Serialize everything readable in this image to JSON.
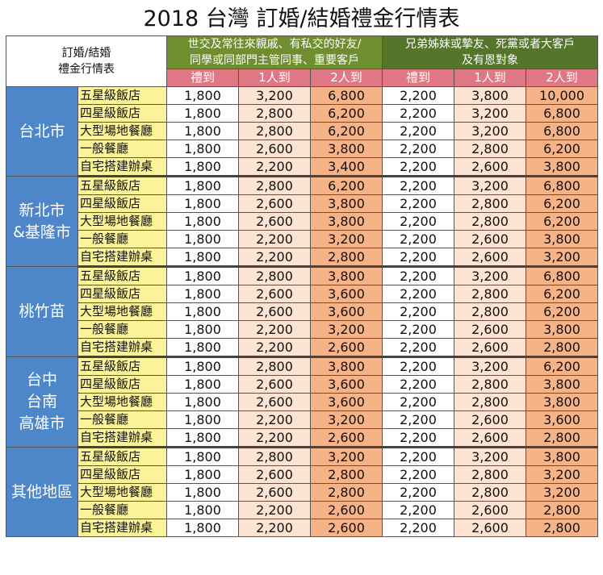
{
  "title": "2018 台灣 訂婚/結婚禮金行情表",
  "header": {
    "corner_line1": "訂婚/結婚",
    "corner_line2": "禮金行情表",
    "group_a_line1": "世交及常往來親戚、有私交的好友/",
    "group_a_line2": "同學或同部門主管同事、重要客戶",
    "group_b_line1": "兄弟姊妹或摯友、死黨或者大客戶",
    "group_b_line2": "及有恩對象",
    "sub_columns": [
      "禮到",
      "1人到",
      "2人到",
      "禮到",
      "1人到",
      "2人到"
    ]
  },
  "colors": {
    "region_bg": "#4d86c9",
    "venue_bg": "#fbf39a",
    "group_a_bg": "#6f8e2f",
    "group_b_bg": "#55762a",
    "sub_header_bg": "#e07785",
    "col_light": "#fce3d2",
    "col_dark": "#f6b387"
  },
  "regions": [
    {
      "name_lines": [
        "台北市"
      ],
      "rows": [
        {
          "venue": "五星級飯店",
          "values": [
            "1,800",
            "3,200",
            "6,800",
            "2,200",
            "3,800",
            "10,000"
          ]
        },
        {
          "venue": "四星級飯店",
          "values": [
            "1,800",
            "2,800",
            "6,200",
            "2,200",
            "3,200",
            "6,800"
          ]
        },
        {
          "venue": "大型場地餐廳",
          "values": [
            "1,800",
            "2,800",
            "6,200",
            "2,200",
            "3,200",
            "6,800"
          ]
        },
        {
          "venue": "一般餐廳",
          "values": [
            "1,800",
            "2,600",
            "3,800",
            "2,200",
            "2,800",
            "6,200"
          ]
        },
        {
          "venue": "自宅搭建辦桌",
          "values": [
            "1,800",
            "2,200",
            "3,400",
            "2,200",
            "2,600",
            "3,800"
          ]
        }
      ]
    },
    {
      "name_lines": [
        "新北市",
        "&基隆市"
      ],
      "rows": [
        {
          "venue": "五星級飯店",
          "values": [
            "1,800",
            "2,800",
            "6,200",
            "2,200",
            "3,200",
            "6,800"
          ]
        },
        {
          "venue": "四星級飯店",
          "values": [
            "1,800",
            "2,600",
            "3,800",
            "2,200",
            "2,800",
            "6,200"
          ]
        },
        {
          "venue": "大型場地餐廳",
          "values": [
            "1,800",
            "2,600",
            "3,800",
            "2,200",
            "2,800",
            "6,200"
          ]
        },
        {
          "venue": "一般餐廳",
          "values": [
            "1,800",
            "2,200",
            "3,200",
            "2,200",
            "2,600",
            "3,800"
          ]
        },
        {
          "venue": "自宅搭建辦桌",
          "values": [
            "1,800",
            "2,200",
            "2,800",
            "2,200",
            "2,600",
            "3,200"
          ]
        }
      ]
    },
    {
      "name_lines": [
        "桃竹苗"
      ],
      "rows": [
        {
          "venue": "五星級飯店",
          "values": [
            "1,800",
            "2,800",
            "3,800",
            "2,200",
            "3,200",
            "6,800"
          ]
        },
        {
          "venue": "四星級飯店",
          "values": [
            "1,800",
            "2,600",
            "3,600",
            "2,200",
            "2,800",
            "6,200"
          ]
        },
        {
          "venue": "大型場地餐廳",
          "values": [
            "1,800",
            "2,600",
            "3,600",
            "2,200",
            "2,800",
            "6,200"
          ]
        },
        {
          "venue": "一般餐廳",
          "values": [
            "1,800",
            "2,200",
            "3,200",
            "2,200",
            "2,600",
            "3,800"
          ]
        },
        {
          "venue": "自宅搭建辦桌",
          "values": [
            "1,800",
            "2,200",
            "2,600",
            "2,200",
            "2,600",
            "2,800"
          ]
        }
      ]
    },
    {
      "name_lines": [
        "台中",
        "台南",
        "高雄市"
      ],
      "rows": [
        {
          "venue": "五星級飯店",
          "values": [
            "1,800",
            "2,800",
            "3,800",
            "2,200",
            "3,200",
            "6,200"
          ]
        },
        {
          "venue": "四星級飯店",
          "values": [
            "1,800",
            "2,600",
            "3,600",
            "2,200",
            "2,800",
            "3,800"
          ]
        },
        {
          "venue": "大型場地餐廳",
          "values": [
            "1,800",
            "2,600",
            "3,600",
            "2,200",
            "2,800",
            "3,800"
          ]
        },
        {
          "venue": "一般餐廳",
          "values": [
            "1,800",
            "2,200",
            "3,200",
            "2,200",
            "2,600",
            "3,600"
          ]
        },
        {
          "venue": "自宅搭建辦桌",
          "values": [
            "1,800",
            "2,200",
            "2,600",
            "2,200",
            "2,600",
            "2,800"
          ]
        }
      ]
    },
    {
      "name_lines": [
        "其他地區"
      ],
      "rows": [
        {
          "venue": "五星級飯店",
          "values": [
            "1,800",
            "2,800",
            "3,200",
            "2,200",
            "3,200",
            "3,800"
          ]
        },
        {
          "venue": "四星級飯店",
          "values": [
            "1,800",
            "2,600",
            "2,800",
            "2,200",
            "2,800",
            "3,200"
          ]
        },
        {
          "venue": "大型場地餐廳",
          "values": [
            "1,800",
            "2,600",
            "2,800",
            "2,200",
            "2,800",
            "3,200"
          ]
        },
        {
          "venue": "一般餐廳",
          "values": [
            "1,800",
            "2,200",
            "2,600",
            "2,200",
            "2,600",
            "2,800"
          ]
        },
        {
          "venue": "自宅搭建辦桌",
          "values": [
            "1,800",
            "2,200",
            "2,600",
            "2,200",
            "2,600",
            "2,800"
          ]
        }
      ]
    }
  ]
}
